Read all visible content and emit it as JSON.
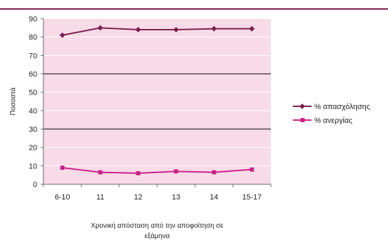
{
  "chart_data": {
    "type": "line",
    "categories": [
      "6-10",
      "11",
      "12",
      "13",
      "14",
      "15-17"
    ],
    "series": [
      {
        "name": "% απασχόλησης",
        "values": [
          81,
          85,
          84,
          84,
          84.5,
          84.5
        ],
        "color": "#7a1f4f",
        "marker": "diamond"
      },
      {
        "name": "% ανεργίας",
        "values": [
          9,
          6.5,
          6,
          7,
          6.5,
          8
        ],
        "color": "#cc1f8a",
        "marker": "square"
      }
    ],
    "ylabel": "Ποσοστά",
    "xlabel": "Χρονική απόσταση από την αποφοίτηση σε εξάμηνα",
    "xlabel_lines": [
      "Χρονική απόσταση από την αποφοίτηση σε",
      "εξάμηνα"
    ],
    "ylim": [
      0,
      90
    ],
    "yticks": [
      0,
      10,
      20,
      30,
      40,
      50,
      60,
      70,
      80,
      90
    ],
    "yticks_labels": [
      "0",
      "10",
      "20",
      "30",
      "40",
      "50",
      "60",
      "70",
      "80",
      "90"
    ],
    "reference_lines": [
      30,
      60
    ],
    "legend_position": "right",
    "colors": {
      "plot_background": "#f7dbe6",
      "top_rule": "#7a1f4f",
      "grid": "#ffffff",
      "reference": "#000000"
    }
  }
}
